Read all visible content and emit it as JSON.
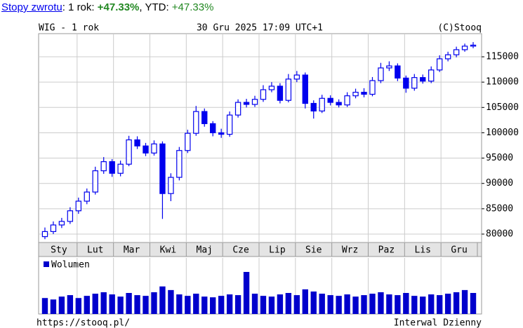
{
  "returns_bar": {
    "link": "Stopy zwrotu",
    "parts": [
      ": 1 rok: ",
      "+47.33%",
      ", YTD: ",
      "+47.33%"
    ]
  },
  "chart_data": {
    "type": "candlestick",
    "title": "WIG - 1 rok",
    "subtitle": "30 Gru 2025 17:09 UTC+1",
    "source": "(C)Stooq",
    "categories": [
      "Sty",
      "Lut",
      "Mar",
      "Kwi",
      "Maj",
      "Cze",
      "Lip",
      "Sie",
      "Wrz",
      "Paz",
      "Lis",
      "Gru"
    ],
    "open": [
      79500,
      80500,
      81800,
      82500,
      84600,
      86500,
      88300,
      92500,
      94300,
      92000,
      93800,
      98600,
      97400,
      96000,
      97800,
      88000,
      91200,
      96500,
      99900,
      104200,
      101800,
      100000,
      99700,
      103500,
      106000,
      105600,
      106600,
      108500,
      109200,
      106400,
      110600,
      111400,
      105800,
      104300,
      106800,
      106000,
      105500,
      107300,
      108000,
      107600,
      110300,
      112800,
      113200,
      110800,
      108800,
      110900,
      110200,
      112400,
      114600,
      115400,
      116400,
      117100
    ],
    "high": [
      81300,
      82500,
      83200,
      85300,
      87200,
      89000,
      93300,
      95200,
      94800,
      94500,
      99400,
      99300,
      98000,
      98500,
      98300,
      92000,
      97200,
      100600,
      105300,
      104800,
      102300,
      100800,
      104200,
      106600,
      106700,
      107300,
      109400,
      110000,
      109800,
      111600,
      112200,
      111900,
      106400,
      107500,
      107400,
      106600,
      108000,
      108700,
      108800,
      111000,
      113800,
      114100,
      113700,
      111300,
      111600,
      111500,
      113100,
      115300,
      116000,
      117000,
      117600,
      117900
    ],
    "low": [
      79000,
      80000,
      81200,
      82000,
      84000,
      85900,
      87800,
      91900,
      91300,
      91400,
      93400,
      96800,
      95400,
      95500,
      83000,
      86500,
      90600,
      96000,
      99400,
      101200,
      99300,
      99000,
      99200,
      103000,
      105000,
      105100,
      106100,
      108000,
      105800,
      106000,
      110000,
      104800,
      102800,
      103900,
      105400,
      105000,
      105100,
      106800,
      107000,
      107200,
      109800,
      112200,
      110200,
      107900,
      108300,
      109700,
      109800,
      112000,
      114100,
      114900,
      116000,
      116700
    ],
    "close": [
      80500,
      81800,
      82500,
      84600,
      86500,
      88300,
      92500,
      94300,
      92000,
      93800,
      98600,
      97400,
      96000,
      97800,
      88000,
      91200,
      96500,
      99900,
      104200,
      101800,
      100000,
      99700,
      103500,
      106000,
      105600,
      106600,
      108500,
      109200,
      106400,
      110600,
      111400,
      105800,
      104300,
      106800,
      106000,
      105500,
      107300,
      108000,
      107600,
      110300,
      112800,
      113200,
      110800,
      108800,
      110900,
      110200,
      112400,
      114600,
      115400,
      116400,
      117100,
      117300
    ],
    "color": "#0000ee",
    "ylim": [
      78340,
      119570
    ],
    "yticks": [
      80000,
      85000,
      90000,
      95000,
      100000,
      105000,
      110000,
      115000
    ],
    "grid": true,
    "volume": {
      "name": "Wolumen",
      "color": "#0000cc",
      "values": [
        22,
        20,
        24,
        26,
        22,
        25,
        28,
        30,
        27,
        24,
        29,
        26,
        25,
        30,
        38,
        33,
        27,
        25,
        28,
        24,
        23,
        25,
        27,
        26,
        58,
        28,
        25,
        24,
        27,
        29,
        26,
        34,
        31,
        28,
        26,
        25,
        27,
        24,
        26,
        28,
        30,
        27,
        26,
        29,
        25,
        24,
        27,
        26,
        28,
        30,
        33,
        29
      ]
    },
    "footer_left": "https://stooq.pl/",
    "footer_right": "Interwal Dzienny"
  }
}
